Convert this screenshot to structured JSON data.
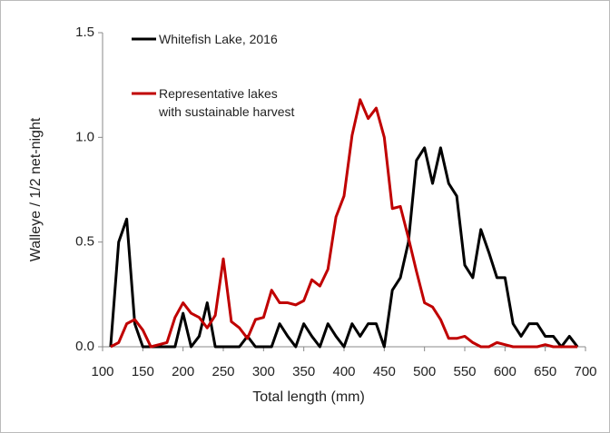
{
  "chart_data": {
    "type": "line",
    "x_label": "Total length (mm)",
    "y_label": "Walleye / 1/2 net-night",
    "x": [
      110,
      120,
      130,
      140,
      150,
      160,
      170,
      180,
      190,
      200,
      210,
      220,
      230,
      240,
      250,
      260,
      270,
      280,
      290,
      300,
      310,
      320,
      330,
      340,
      350,
      360,
      370,
      380,
      390,
      400,
      410,
      420,
      430,
      440,
      450,
      460,
      470,
      480,
      490,
      500,
      510,
      520,
      530,
      540,
      550,
      560,
      570,
      580,
      590,
      600,
      610,
      620,
      630,
      640,
      650,
      660,
      670,
      680,
      690
    ],
    "series": [
      {
        "name": "Whitefish Lake, 2016",
        "color": "#000000",
        "values": [
          0,
          0.5,
          0.61,
          0.11,
          0,
          0,
          0,
          0,
          0,
          0.16,
          0,
          0.05,
          0.21,
          0,
          0,
          0,
          0,
          0.05,
          0,
          0,
          0,
          0.11,
          0.05,
          0,
          0.11,
          0.05,
          0,
          0.11,
          0.05,
          0,
          0.11,
          0.05,
          0.11,
          0.11,
          0,
          0.27,
          0.33,
          0.5,
          0.89,
          0.95,
          0.78,
          0.95,
          0.78,
          0.72,
          0.39,
          0.33,
          0.56,
          0.45,
          0.33,
          0.33,
          0.11,
          0.05,
          0.11,
          0.11,
          0.05,
          0.05,
          0,
          0.05,
          0
        ]
      },
      {
        "name": "Representative lakes with sustainable harvest",
        "color": "#c00000",
        "values": [
          0,
          0.02,
          0.11,
          0.13,
          0.08,
          0,
          0.01,
          0.02,
          0.14,
          0.21,
          0.16,
          0.14,
          0.09,
          0.15,
          0.42,
          0.12,
          0.09,
          0.04,
          0.13,
          0.14,
          0.27,
          0.21,
          0.21,
          0.2,
          0.22,
          0.32,
          0.29,
          0.37,
          0.62,
          0.72,
          1.01,
          1.18,
          1.09,
          1.14,
          1.0,
          0.66,
          0.67,
          0.52,
          0.36,
          0.21,
          0.19,
          0.13,
          0.04,
          0.04,
          0.05,
          0.02,
          0,
          0,
          0.02,
          0.01,
          0,
          0,
          0,
          0,
          0.01,
          0,
          0,
          0,
          0
        ]
      }
    ],
    "xlim": [
      100,
      700
    ],
    "xticks": [
      100,
      150,
      200,
      250,
      300,
      350,
      400,
      450,
      500,
      550,
      600,
      650,
      700
    ],
    "ylim": [
      0,
      1.5
    ],
    "yticks": [
      {
        "value": 0,
        "label": "0.0"
      },
      {
        "value": 0.5,
        "label": "0.5"
      },
      {
        "value": 1,
        "label": "1.0"
      },
      {
        "value": 1.5,
        "label": "1.5"
      }
    ],
    "grid": false
  }
}
